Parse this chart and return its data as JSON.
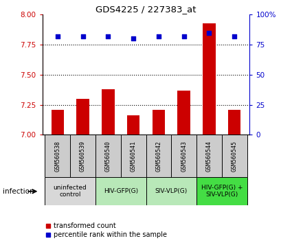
{
  "title": "GDS4225 / 227383_at",
  "samples": [
    "GSM560538",
    "GSM560539",
    "GSM560540",
    "GSM560541",
    "GSM560542",
    "GSM560543",
    "GSM560544",
    "GSM560545"
  ],
  "bar_values": [
    7.21,
    7.3,
    7.38,
    7.16,
    7.21,
    7.37,
    7.93,
    7.21
  ],
  "percentile_values": [
    82,
    82,
    82,
    80,
    82,
    82,
    85,
    82
  ],
  "ylim_left": [
    7.0,
    8.0
  ],
  "ylim_right": [
    0,
    100
  ],
  "yticks_left": [
    7.0,
    7.25,
    7.5,
    7.75,
    8.0
  ],
  "yticks_right": [
    0,
    25,
    50,
    75,
    100
  ],
  "bar_color": "#cc0000",
  "dot_color": "#0000cc",
  "bar_width": 0.5,
  "groups": [
    {
      "label": "uninfected\ncontrol",
      "start": 0,
      "end": 2,
      "color": "#d8d8d8"
    },
    {
      "label": "HIV-GFP(G)",
      "start": 2,
      "end": 4,
      "color": "#b8e8b8"
    },
    {
      "label": "SIV-VLP(G)",
      "start": 4,
      "end": 6,
      "color": "#b8e8b8"
    },
    {
      "label": "HIV-GFP(G) +\nSIV-VLP(G)",
      "start": 6,
      "end": 8,
      "color": "#44dd44"
    }
  ],
  "infection_label": "infection",
  "legend_bar_label": "transformed count",
  "legend_dot_label": "percentile rank within the sample",
  "sample_box_color": "#cccccc",
  "left_axis_color": "#cc0000",
  "right_axis_color": "#0000cc"
}
